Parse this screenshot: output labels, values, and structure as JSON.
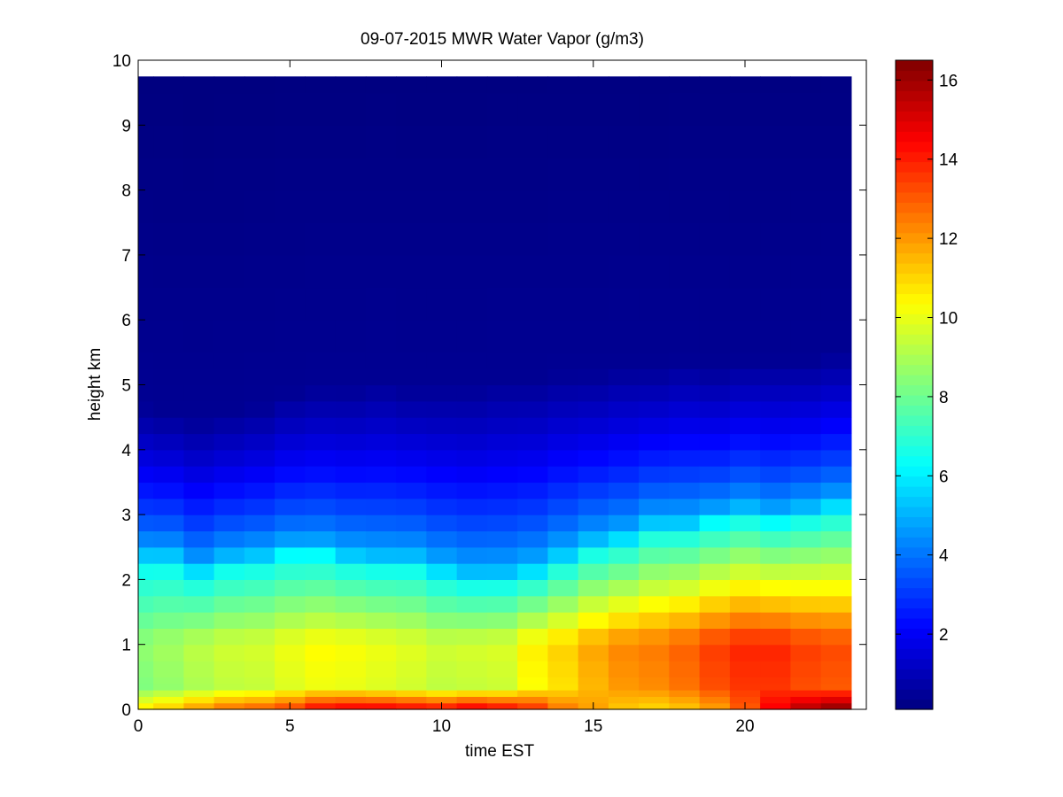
{
  "chart_data": {
    "type": "heatmap",
    "title": "09-07-2015 MWR Water Vapor (g/m3)",
    "xlabel": "time EST",
    "ylabel": "height km",
    "xlim": [
      0,
      24
    ],
    "ylim": [
      0,
      10
    ],
    "x_ticks": [
      0,
      5,
      10,
      15,
      20
    ],
    "y_ticks": [
      0,
      1,
      2,
      3,
      4,
      5,
      6,
      7,
      8,
      9,
      10
    ],
    "colorbar": {
      "colormap": "jet",
      "range": [
        0.1,
        16.5
      ],
      "ticks": [
        2,
        4,
        6,
        8,
        10,
        12,
        14,
        16
      ]
    },
    "grid": false,
    "x": [
      0,
      1,
      2,
      3,
      4,
      5,
      6,
      7,
      8,
      9,
      10,
      11,
      12,
      13,
      14,
      15,
      16,
      17,
      18,
      19,
      20,
      21,
      22,
      23
    ],
    "heights": [
      0,
      0.1,
      0.2,
      0.3,
      0.4,
      0.5,
      0.75,
      1,
      1.25,
      1.5,
      1.75,
      2,
      2.25,
      2.5,
      2.75,
      3,
      3.25,
      3.5,
      3.75,
      4,
      4.25,
      4.5,
      4.75,
      5,
      5.25,
      5.5,
      6,
      6.5,
      7,
      7.5,
      8,
      8.5,
      9,
      9.5,
      9.75
    ],
    "profiles": [
      {
        "surface": 10.8,
        "low": 8.3,
        "top": 2.3,
        "upper": 4.7
      },
      {
        "surface": 11.3,
        "low": 8.6,
        "top": 2.3,
        "upper": 4.6
      },
      {
        "surface": 12.1,
        "low": 9.0,
        "top": 2.1,
        "upper": 4.5
      },
      {
        "surface": 12.8,
        "low": 9.3,
        "top": 2.25,
        "upper": 4.6
      },
      {
        "surface": 13.1,
        "low": 9.4,
        "top": 2.3,
        "upper": 4.7
      },
      {
        "surface": 13.6,
        "low": 9.8,
        "top": 2.4,
        "upper": 4.9
      },
      {
        "surface": 14.6,
        "low": 10.1,
        "top": 2.4,
        "upper": 5.0
      },
      {
        "surface": 14.9,
        "low": 10.0,
        "top": 2.3,
        "upper": 5.0
      },
      {
        "surface": 14.9,
        "low": 9.8,
        "top": 2.25,
        "upper": 5.1
      },
      {
        "surface": 14.7,
        "low": 9.6,
        "top": 2.25,
        "upper": 5.0
      },
      {
        "surface": 14.5,
        "low": 9.3,
        "top": 2.1,
        "upper": 5.0
      },
      {
        "surface": 15.0,
        "low": 9.4,
        "top": 2.0,
        "upper": 5.0
      },
      {
        "surface": 14.6,
        "low": 9.5,
        "top": 2.0,
        "upper": 5.1
      },
      {
        "surface": 13.9,
        "low": 10.3,
        "top": 2.1,
        "upper": 5.1
      },
      {
        "surface": 12.6,
        "low": 10.8,
        "top": 2.3,
        "upper": 5.2
      },
      {
        "surface": 11.9,
        "low": 11.5,
        "top": 2.5,
        "upper": 5.2
      },
      {
        "surface": 11.2,
        "low": 12.0,
        "top": 2.6,
        "upper": 5.3
      },
      {
        "surface": 10.9,
        "low": 12.2,
        "top": 2.8,
        "upper": 5.3
      },
      {
        "surface": 11.2,
        "low": 12.6,
        "top": 2.8,
        "upper": 5.4
      },
      {
        "surface": 11.8,
        "low": 13.2,
        "top": 2.9,
        "upper": 5.3
      },
      {
        "surface": 13.0,
        "low": 13.6,
        "top": 3.0,
        "upper": 5.4
      },
      {
        "surface": 14.6,
        "low": 13.6,
        "top": 2.9,
        "upper": 5.4
      },
      {
        "surface": 15.7,
        "low": 13.2,
        "top": 3.0,
        "upper": 5.4
      },
      {
        "surface": 16.4,
        "low": 13.0,
        "top": 3.1,
        "upper": 5.5
      }
    ]
  }
}
